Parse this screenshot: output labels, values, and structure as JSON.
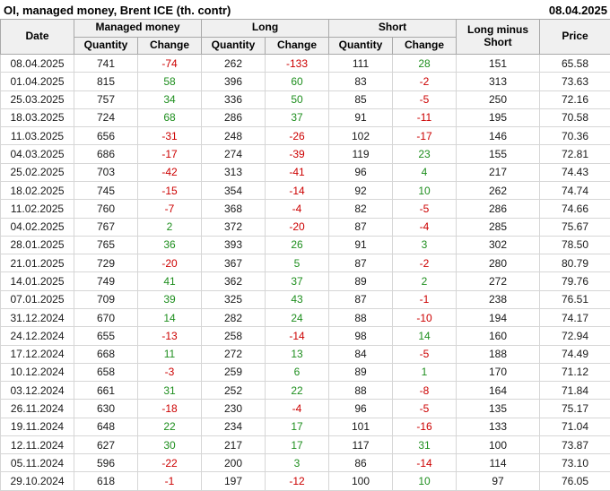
{
  "title": "OI, managed money, Brent ICE (th. contr)",
  "report_date": "08.04.2025",
  "colors": {
    "negative_change": "#cc0000",
    "positive_change": "#1e8e1e",
    "header_background": "#f0f0f0",
    "grid_line": "#d6d6d6",
    "header_grid_line": "#a9a9a9"
  },
  "table": {
    "group_headers": {
      "date": "Date",
      "managed_money": "Managed money",
      "long": "Long",
      "short": "Short",
      "long_minus_short": "Long minus Short",
      "price": "Price"
    },
    "sub_headers": {
      "quantity": "Quantity",
      "change": "Change"
    }
  },
  "chart_data": {
    "type": "table",
    "title": "OI, managed money, Brent ICE (th. contr)",
    "as_of_date": "08.04.2025",
    "columns": [
      "Date",
      "Managed money Quantity",
      "Managed money Change",
      "Long Quantity",
      "Long Change",
      "Short Quantity",
      "Short Change",
      "Long minus Short",
      "Price"
    ],
    "rows": [
      [
        "08.04.2025",
        741,
        -74,
        262,
        -133,
        111,
        28,
        151,
        "65.58"
      ],
      [
        "01.04.2025",
        815,
        58,
        396,
        60,
        83,
        -2,
        313,
        "73.63"
      ],
      [
        "25.03.2025",
        757,
        34,
        336,
        50,
        85,
        -5,
        250,
        "72.16"
      ],
      [
        "18.03.2025",
        724,
        68,
        286,
        37,
        91,
        -11,
        195,
        "70.58"
      ],
      [
        "11.03.2025",
        656,
        -31,
        248,
        -26,
        102,
        -17,
        146,
        "70.36"
      ],
      [
        "04.03.2025",
        686,
        -17,
        274,
        -39,
        119,
        23,
        155,
        "72.81"
      ],
      [
        "25.02.2025",
        703,
        -42,
        313,
        -41,
        96,
        4,
        217,
        "74.43"
      ],
      [
        "18.02.2025",
        745,
        -15,
        354,
        -14,
        92,
        10,
        262,
        "74.74"
      ],
      [
        "11.02.2025",
        760,
        -7,
        368,
        -4,
        82,
        -5,
        286,
        "74.66"
      ],
      [
        "04.02.2025",
        767,
        2,
        372,
        -20,
        87,
        -4,
        285,
        "75.67"
      ],
      [
        "28.01.2025",
        765,
        36,
        393,
        26,
        91,
        3,
        302,
        "78.50"
      ],
      [
        "21.01.2025",
        729,
        -20,
        367,
        5,
        87,
        -2,
        280,
        "80.79"
      ],
      [
        "14.01.2025",
        749,
        41,
        362,
        37,
        89,
        2,
        272,
        "79.76"
      ],
      [
        "07.01.2025",
        709,
        39,
        325,
        43,
        87,
        -1,
        238,
        "76.51"
      ],
      [
        "31.12.2024",
        670,
        14,
        282,
        24,
        88,
        -10,
        194,
        "74.17"
      ],
      [
        "24.12.2024",
        655,
        -13,
        258,
        -14,
        98,
        14,
        160,
        "72.94"
      ],
      [
        "17.12.2024",
        668,
        11,
        272,
        13,
        84,
        -5,
        188,
        "74.49"
      ],
      [
        "10.12.2024",
        658,
        -3,
        259,
        6,
        89,
        1,
        170,
        "71.12"
      ],
      [
        "03.12.2024",
        661,
        31,
        252,
        22,
        88,
        -8,
        164,
        "71.84"
      ],
      [
        "26.11.2024",
        630,
        -18,
        230,
        -4,
        96,
        -5,
        135,
        "75.17"
      ],
      [
        "19.11.2024",
        648,
        22,
        234,
        17,
        101,
        -16,
        133,
        "71.04"
      ],
      [
        "12.11.2024",
        627,
        30,
        217,
        17,
        117,
        31,
        100,
        "73.87"
      ],
      [
        "05.11.2024",
        596,
        -22,
        200,
        3,
        86,
        -14,
        114,
        "73.10"
      ],
      [
        "29.10.2024",
        618,
        -1,
        197,
        -12,
        100,
        10,
        97,
        "76.05"
      ]
    ]
  }
}
